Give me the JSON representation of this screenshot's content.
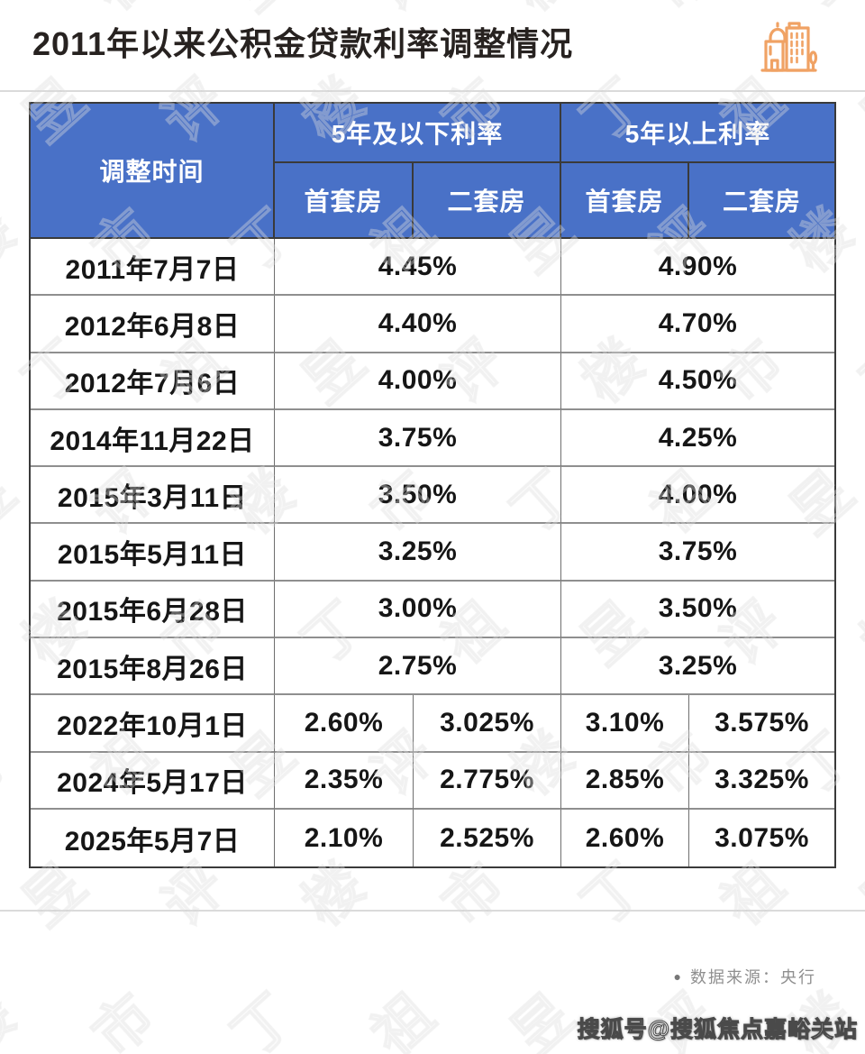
{
  "title": "2011年以来公积金贷款利率调整情况",
  "icons": {
    "title_icon": "buildings-icon",
    "footer_bullet": "dot-icon"
  },
  "colors": {
    "header_blue": "#4971C7",
    "accent_orange": "#F0A264",
    "grid_dark": "#3a3a3a",
    "grid_gray": "#8f8f8f"
  },
  "table": {
    "header": {
      "time": "调整时间",
      "group_under5": "5年及以下利率",
      "group_over5": "5年以上利率",
      "first_home": "首套房",
      "second_home": "二套房"
    },
    "rows": [
      {
        "date": "2011年7月7日",
        "merged": true,
        "cells": [
          "4.45%",
          "4.90%"
        ]
      },
      {
        "date": "2012年6月8日",
        "merged": true,
        "cells": [
          "4.40%",
          "4.70%"
        ]
      },
      {
        "date": "2012年7月6日",
        "merged": true,
        "cells": [
          "4.00%",
          "4.50%"
        ]
      },
      {
        "date": "2014年11月22日",
        "merged": true,
        "cells": [
          "3.75%",
          "4.25%"
        ]
      },
      {
        "date": "2015年3月11日",
        "merged": true,
        "cells": [
          "3.50%",
          "4.00%"
        ]
      },
      {
        "date": "2015年5月11日",
        "merged": true,
        "cells": [
          "3.25%",
          "3.75%"
        ]
      },
      {
        "date": "2015年6月28日",
        "merged": true,
        "cells": [
          "3.00%",
          "3.50%"
        ]
      },
      {
        "date": "2015年8月26日",
        "merged": true,
        "cells": [
          "2.75%",
          "3.25%"
        ]
      },
      {
        "date": "2022年10月1日",
        "merged": false,
        "cells": [
          "2.60%",
          "3.025%",
          "3.10%",
          "3.575%"
        ]
      },
      {
        "date": "2024年5月17日",
        "merged": false,
        "cells": [
          "2.35%",
          "2.775%",
          "2.85%",
          "3.325%"
        ]
      },
      {
        "date": "2025年5月7日",
        "merged": false,
        "cells": [
          "2.10%",
          "2.525%",
          "2.60%",
          "3.075%"
        ]
      }
    ]
  },
  "footer": {
    "bullet": "●",
    "source_label": "数据来源：央行"
  },
  "watermark": {
    "glyphs": "丁祖昱评楼市",
    "sohu": "搜狐号@搜狐焦点嘉峪关站"
  },
  "chart_data": {
    "type": "table",
    "title": "2011年以来公积金贷款利率调整情况",
    "columns": [
      "调整时间",
      "5年及以下利率-首套房",
      "5年及以下利率-二套房",
      "5年以上利率-首套房",
      "5年以上利率-二套房"
    ],
    "rows": [
      [
        "2011年7月7日",
        "4.45%",
        "4.45%",
        "4.90%",
        "4.90%"
      ],
      [
        "2012年6月8日",
        "4.40%",
        "4.40%",
        "4.70%",
        "4.70%"
      ],
      [
        "2012年7月6日",
        "4.00%",
        "4.00%",
        "4.50%",
        "4.50%"
      ],
      [
        "2014年11月22日",
        "3.75%",
        "3.75%",
        "4.25%",
        "4.25%"
      ],
      [
        "2015年3月11日",
        "3.50%",
        "3.50%",
        "4.00%",
        "4.00%"
      ],
      [
        "2015年5月11日",
        "3.25%",
        "3.25%",
        "3.75%",
        "3.75%"
      ],
      [
        "2015年6月28日",
        "3.00%",
        "3.00%",
        "3.50%",
        "3.50%"
      ],
      [
        "2015年8月26日",
        "2.75%",
        "2.75%",
        "3.25%",
        "3.25%"
      ],
      [
        "2022年10月1日",
        "2.60%",
        "3.025%",
        "3.10%",
        "3.575%"
      ],
      [
        "2024年5月17日",
        "2.35%",
        "2.775%",
        "2.85%",
        "3.325%"
      ],
      [
        "2025年5月7日",
        "2.10%",
        "2.525%",
        "2.60%",
        "3.075%"
      ]
    ],
    "notes": "2011-2015年行中首套房与二套房利率相同(单元格合并)；2022年起分列显示。数据来源：央行",
    "source": "央行"
  }
}
